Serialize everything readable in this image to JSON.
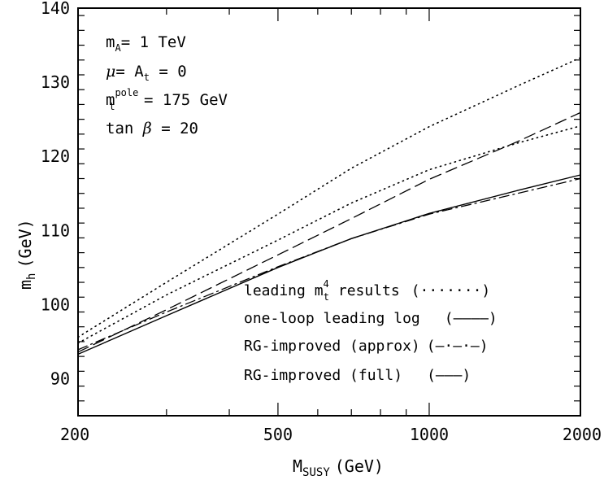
{
  "chart_data": {
    "type": "line",
    "xscale": "log",
    "xlim": [
      200,
      2000
    ],
    "ylim": [
      85,
      140
    ],
    "x_ticks": [
      "200",
      "500",
      "1000",
      "2000"
    ],
    "y_ticks": [
      "90",
      "100",
      "110",
      "120",
      "130",
      "140"
    ],
    "xlabel_main": "M",
    "xlabel_sub": "SUSY",
    "xlabel_unit": "(GeV)",
    "ylabel_main": "m",
    "ylabel_sub": "h",
    "ylabel_unit": "(GeV)",
    "annotations": {
      "line1_main": "m",
      "line1_sub": "A",
      "line1_rest": "= 1 TeV",
      "line2_greek": "μ",
      "line2_mid": "= A",
      "line2_sub": "t",
      "line2_rest": " = 0",
      "line3_main": "m",
      "line3_sup": "pole",
      "line3_sub": "t",
      "line3_rest": " = 175 GeV",
      "line4_main": "tan ",
      "line4_greek": "β",
      "line4_rest": " = 20"
    },
    "legend": [
      {
        "pre": "leading m",
        "sup": "4",
        "sub": "t",
        "post": " results",
        "pattern": "(·······)"
      },
      {
        "pre": "one-loop leading log",
        "pattern": "(––––)"
      },
      {
        "pre": "RG-improved (approx)",
        "pattern": "(–·–·–)"
      },
      {
        "pre": "RG-improved (full)",
        "pattern": "(———)"
      }
    ],
    "series": [
      {
        "style": "dotted-upper",
        "x": [
          200,
          300,
          500,
          700,
          1000,
          1500,
          2000
        ],
        "y": [
          95.6,
          103.0,
          112.2,
          118.4,
          124.0,
          129.5,
          133.3
        ]
      },
      {
        "style": "dotted-lower",
        "x": [
          200,
          300,
          500,
          700,
          1000,
          1500,
          2000
        ],
        "y": [
          94.8,
          101.3,
          108.7,
          113.7,
          118.2,
          121.8,
          124.1
        ]
      },
      {
        "style": "dashed",
        "x": [
          200,
          300,
          500,
          700,
          1000,
          1500,
          2000
        ],
        "y": [
          93.6,
          99.3,
          106.7,
          111.6,
          116.9,
          122.0,
          125.9
        ]
      },
      {
        "style": "dashdot",
        "x": [
          200,
          300,
          500,
          700,
          1000,
          1500,
          2000
        ],
        "y": [
          93.9,
          99.0,
          105.1,
          108.9,
          112.2,
          115.0,
          117.0
        ]
      },
      {
        "style": "solid",
        "x": [
          200,
          300,
          500,
          700,
          1000,
          1500,
          2000
        ],
        "y": [
          93.3,
          98.5,
          105.0,
          108.9,
          112.3,
          115.4,
          117.5
        ]
      }
    ]
  }
}
